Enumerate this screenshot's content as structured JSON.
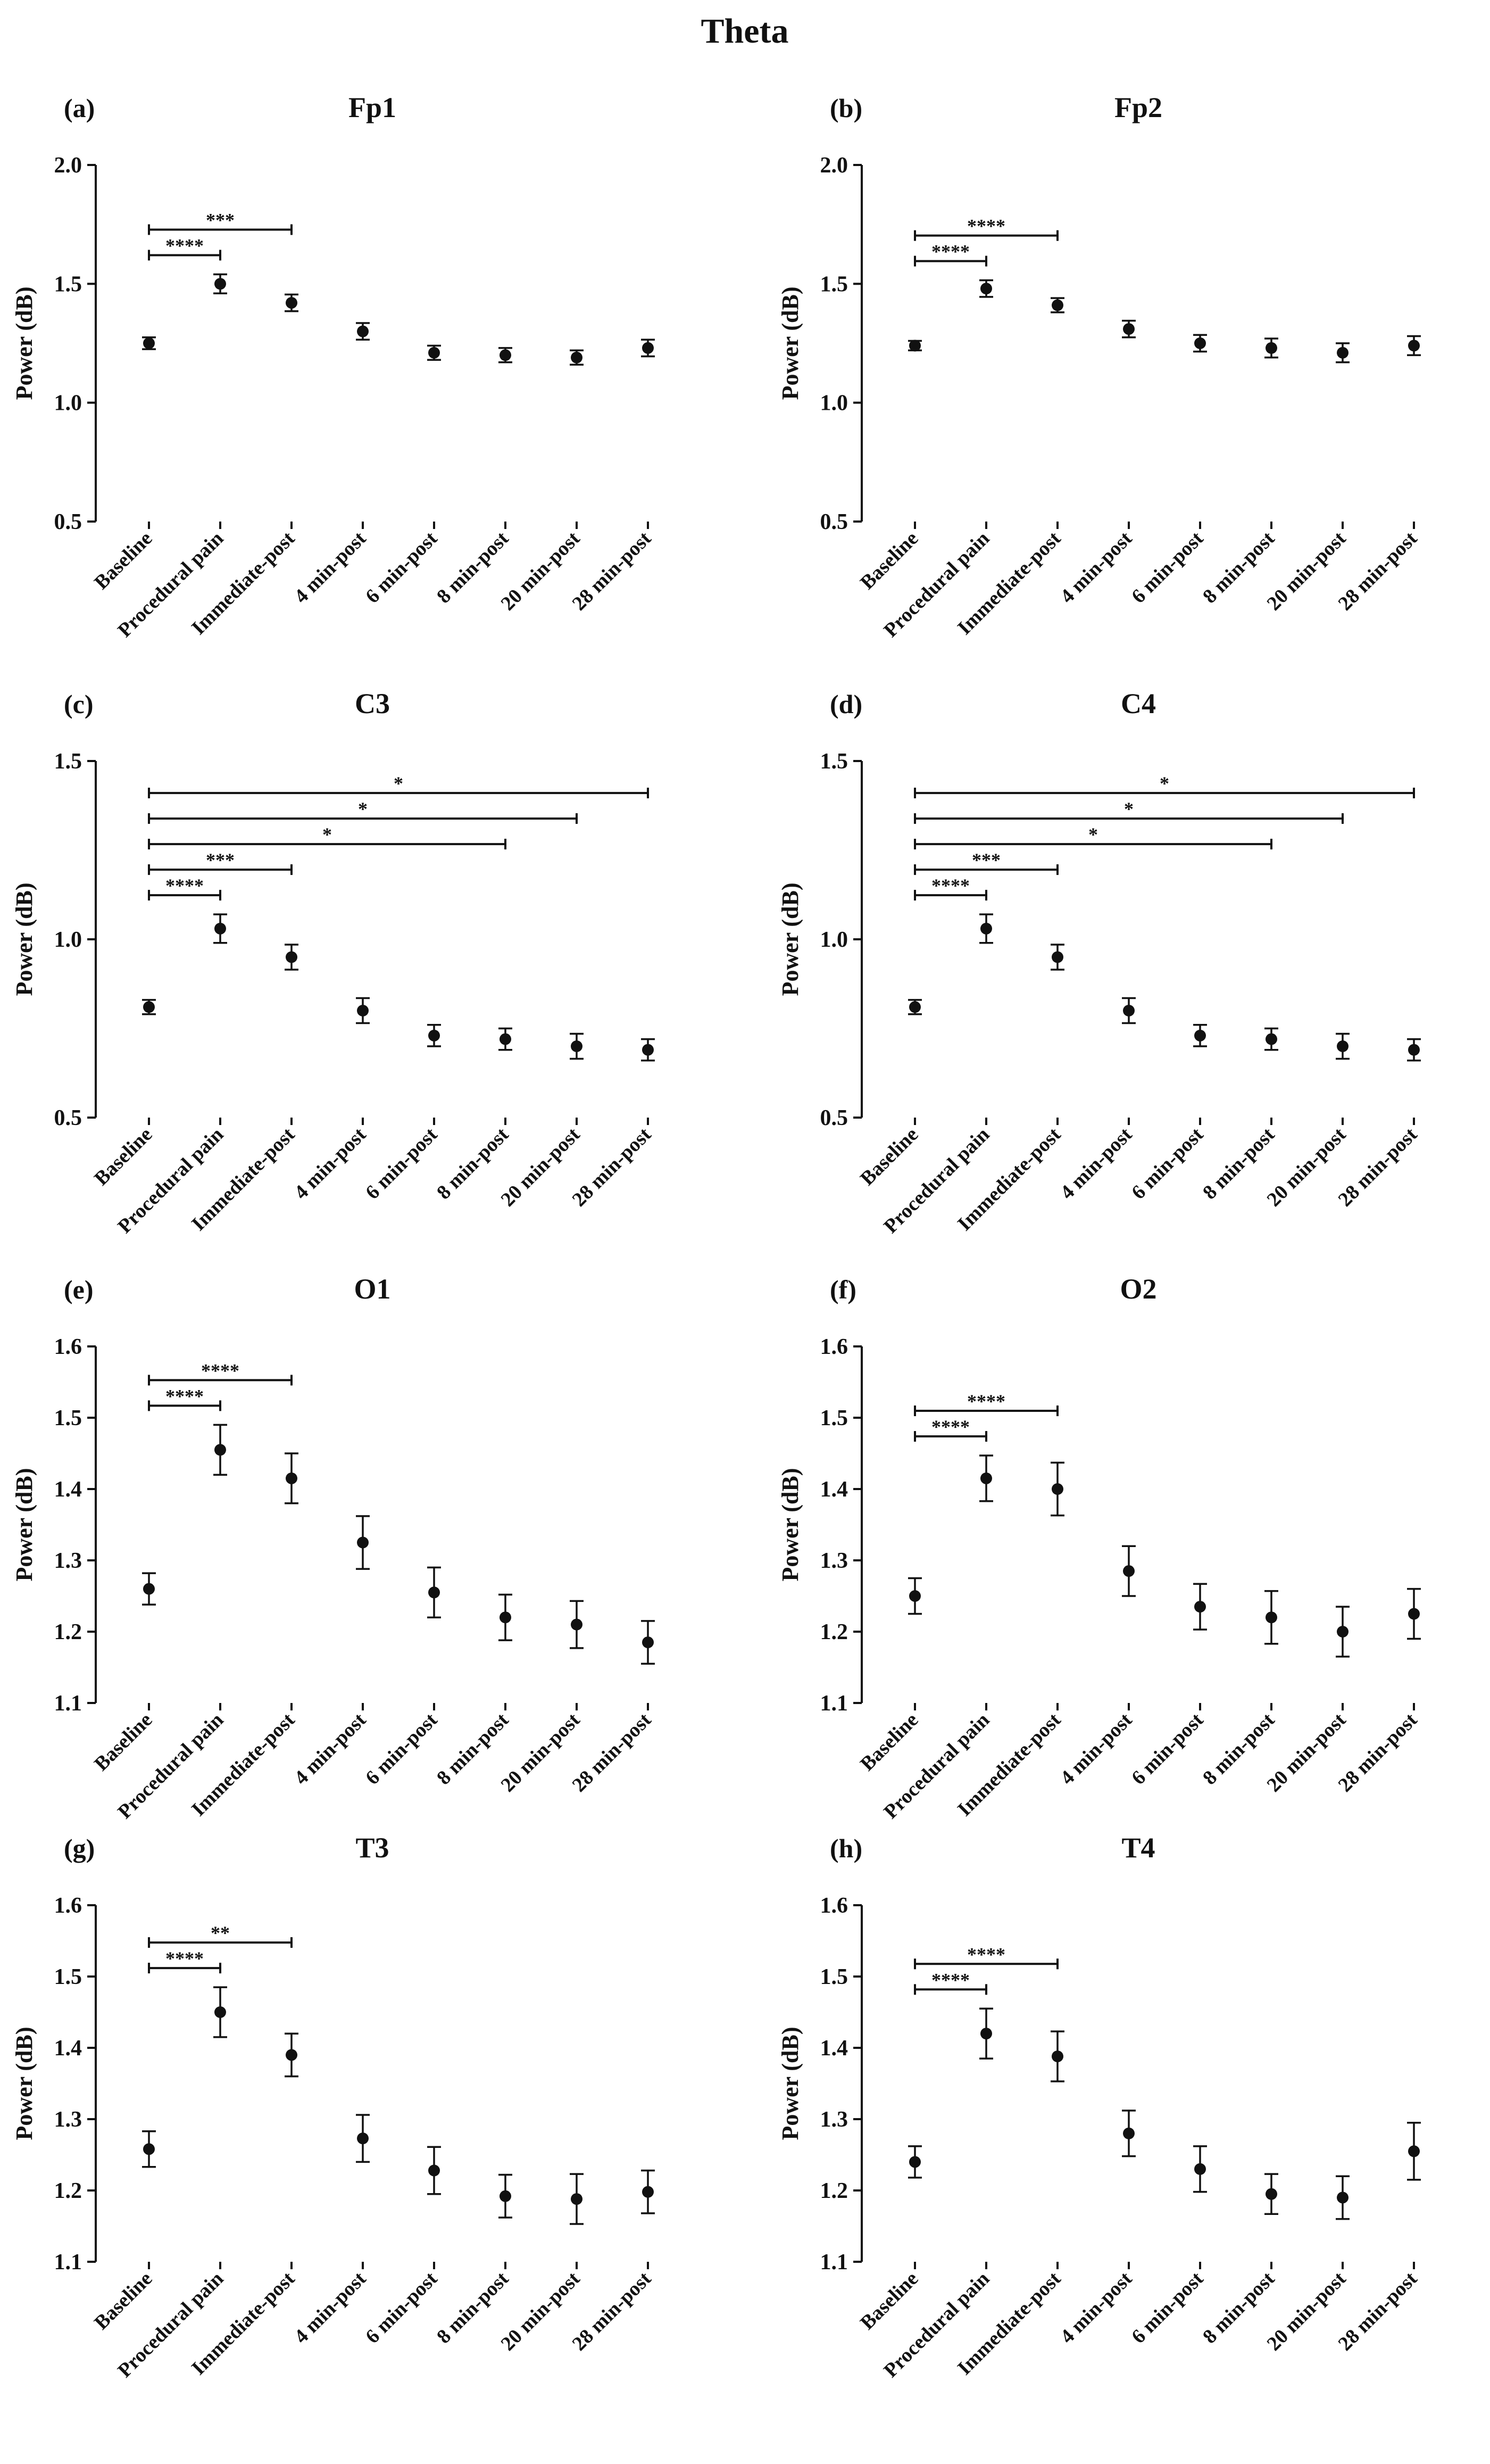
{
  "figure_title": "Theta",
  "chart_data": [
    {
      "panel": "(a)",
      "title": "Fp1",
      "type": "scatter",
      "ylabel": "Power (dB)",
      "ylim": [
        0.5,
        2.0
      ],
      "yticks": [
        "0.5",
        "1.0",
        "1.5",
        "2.0"
      ],
      "categories": [
        "Baseline",
        "Procedural pain",
        "Immediate-post",
        "4 min-post",
        "6 min-post",
        "8 min-post",
        "20 min-post",
        "28 min-post"
      ],
      "values": [
        1.25,
        1.5,
        1.42,
        1.3,
        1.21,
        1.2,
        1.19,
        1.23
      ],
      "errors": [
        0.025,
        0.04,
        0.035,
        0.035,
        0.03,
        0.03,
        0.03,
        0.035
      ],
      "comparisons": [
        {
          "from": 0,
          "to": 1,
          "label": "****"
        },
        {
          "from": 0,
          "to": 2,
          "label": "***"
        }
      ]
    },
    {
      "panel": "(b)",
      "title": "Fp2",
      "type": "scatter",
      "ylabel": "Power (dB)",
      "ylim": [
        0.5,
        2.0
      ],
      "yticks": [
        "0.5",
        "1.0",
        "1.5",
        "2.0"
      ],
      "categories": [
        "Baseline",
        "Procedural pain",
        "Immediate-post",
        "4 min-post",
        "6 min-post",
        "8 min-post",
        "20 min-post",
        "28 min-post"
      ],
      "values": [
        1.24,
        1.48,
        1.41,
        1.31,
        1.25,
        1.23,
        1.21,
        1.24
      ],
      "errors": [
        0.02,
        0.035,
        0.03,
        0.035,
        0.035,
        0.04,
        0.04,
        0.04
      ],
      "comparisons": [
        {
          "from": 0,
          "to": 1,
          "label": "****"
        },
        {
          "from": 0,
          "to": 2,
          "label": "****"
        }
      ]
    },
    {
      "panel": "(c)",
      "title": "C3",
      "type": "scatter",
      "ylabel": "Power (dB)",
      "ylim": [
        0.5,
        1.5
      ],
      "yticks": [
        "0.5",
        "1.0",
        "1.5"
      ],
      "categories": [
        "Baseline",
        "Procedural pain",
        "Immediate-post",
        "4 min-post",
        "6 min-post",
        "8 min-post",
        "20 min-post",
        "28 min-post"
      ],
      "values": [
        0.81,
        1.03,
        0.95,
        0.8,
        0.73,
        0.72,
        0.7,
        0.69
      ],
      "errors": [
        0.02,
        0.04,
        0.035,
        0.035,
        0.03,
        0.03,
        0.035,
        0.03
      ],
      "comparisons": [
        {
          "from": 0,
          "to": 1,
          "label": "****"
        },
        {
          "from": 0,
          "to": 2,
          "label": "***"
        },
        {
          "from": 0,
          "to": 5,
          "label": "*"
        },
        {
          "from": 0,
          "to": 6,
          "label": "*"
        },
        {
          "from": 0,
          "to": 7,
          "label": "*"
        }
      ]
    },
    {
      "panel": "(d)",
      "title": "C4",
      "type": "scatter",
      "ylabel": "Power (dB)",
      "ylim": [
        0.5,
        1.5
      ],
      "yticks": [
        "0.5",
        "1.0",
        "1.5"
      ],
      "categories": [
        "Baseline",
        "Procedural pain",
        "Immediate-post",
        "4 min-post",
        "6 min-post",
        "8 min-post",
        "20 min-post",
        "28 min-post"
      ],
      "values": [
        0.81,
        1.03,
        0.95,
        0.8,
        0.73,
        0.72,
        0.7,
        0.69
      ],
      "errors": [
        0.02,
        0.04,
        0.035,
        0.035,
        0.03,
        0.03,
        0.035,
        0.03
      ],
      "comparisons": [
        {
          "from": 0,
          "to": 1,
          "label": "****"
        },
        {
          "from": 0,
          "to": 2,
          "label": "***"
        },
        {
          "from": 0,
          "to": 5,
          "label": "*"
        },
        {
          "from": 0,
          "to": 6,
          "label": "*"
        },
        {
          "from": 0,
          "to": 7,
          "label": "*"
        }
      ]
    },
    {
      "panel": "(e)",
      "title": "O1",
      "type": "scatter",
      "ylabel": "Power (dB)",
      "ylim": [
        1.1,
        1.6
      ],
      "yticks": [
        "1.1",
        "1.2",
        "1.3",
        "1.4",
        "1.5",
        "1.6"
      ],
      "categories": [
        "Baseline",
        "Procedural pain",
        "Immediate-post",
        "4 min-post",
        "6 min-post",
        "8 min-post",
        "20 min-post",
        "28 min-post"
      ],
      "values": [
        1.26,
        1.455,
        1.415,
        1.325,
        1.255,
        1.22,
        1.21,
        1.185
      ],
      "errors": [
        0.022,
        0.035,
        0.035,
        0.037,
        0.035,
        0.032,
        0.033,
        0.03
      ],
      "comparisons": [
        {
          "from": 0,
          "to": 1,
          "label": "****"
        },
        {
          "from": 0,
          "to": 2,
          "label": "****"
        }
      ]
    },
    {
      "panel": "(f)",
      "title": "O2",
      "type": "scatter",
      "ylabel": "Power (dB)",
      "ylim": [
        1.1,
        1.6
      ],
      "yticks": [
        "1.1",
        "1.2",
        "1.3",
        "1.4",
        "1.5",
        "1.6"
      ],
      "categories": [
        "Baseline",
        "Procedural pain",
        "Immediate-post",
        "4 min-post",
        "6 min-post",
        "8 min-post",
        "20 min-post",
        "28 min-post"
      ],
      "values": [
        1.25,
        1.415,
        1.4,
        1.285,
        1.235,
        1.22,
        1.2,
        1.225
      ],
      "errors": [
        0.025,
        0.032,
        0.037,
        0.035,
        0.032,
        0.037,
        0.035,
        0.035
      ],
      "comparisons": [
        {
          "from": 0,
          "to": 1,
          "label": "****"
        },
        {
          "from": 0,
          "to": 2,
          "label": "****"
        }
      ]
    },
    {
      "panel": "(g)",
      "title": "T3",
      "type": "scatter",
      "ylabel": "Power (dB)",
      "ylim": [
        1.1,
        1.6
      ],
      "yticks": [
        "1.1",
        "1.2",
        "1.3",
        "1.4",
        "1.5",
        "1.6"
      ],
      "categories": [
        "Baseline",
        "Procedural pain",
        "Immediate-post",
        "4 min-post",
        "6 min-post",
        "8 min-post",
        "20 min-post",
        "28 min-post"
      ],
      "values": [
        1.258,
        1.45,
        1.39,
        1.273,
        1.228,
        1.192,
        1.188,
        1.198
      ],
      "errors": [
        0.025,
        0.035,
        0.03,
        0.033,
        0.033,
        0.03,
        0.035,
        0.03
      ],
      "comparisons": [
        {
          "from": 0,
          "to": 1,
          "label": "****"
        },
        {
          "from": 0,
          "to": 2,
          "label": "**"
        }
      ]
    },
    {
      "panel": "(h)",
      "title": "T4",
      "type": "scatter",
      "ylabel": "Power (dB)",
      "ylim": [
        1.1,
        1.6
      ],
      "yticks": [
        "1.1",
        "1.2",
        "1.3",
        "1.4",
        "1.5",
        "1.6"
      ],
      "categories": [
        "Baseline",
        "Procedural pain",
        "Immediate-post",
        "4 min-post",
        "6 min-post",
        "8 min-post",
        "20 min-post",
        "28 min-post"
      ],
      "values": [
        1.24,
        1.42,
        1.388,
        1.28,
        1.23,
        1.195,
        1.19,
        1.255
      ],
      "errors": [
        0.022,
        0.035,
        0.035,
        0.032,
        0.032,
        0.028,
        0.03,
        0.04
      ],
      "comparisons": [
        {
          "from": 0,
          "to": 1,
          "label": "****"
        },
        {
          "from": 0,
          "to": 2,
          "label": "****"
        }
      ]
    }
  ]
}
